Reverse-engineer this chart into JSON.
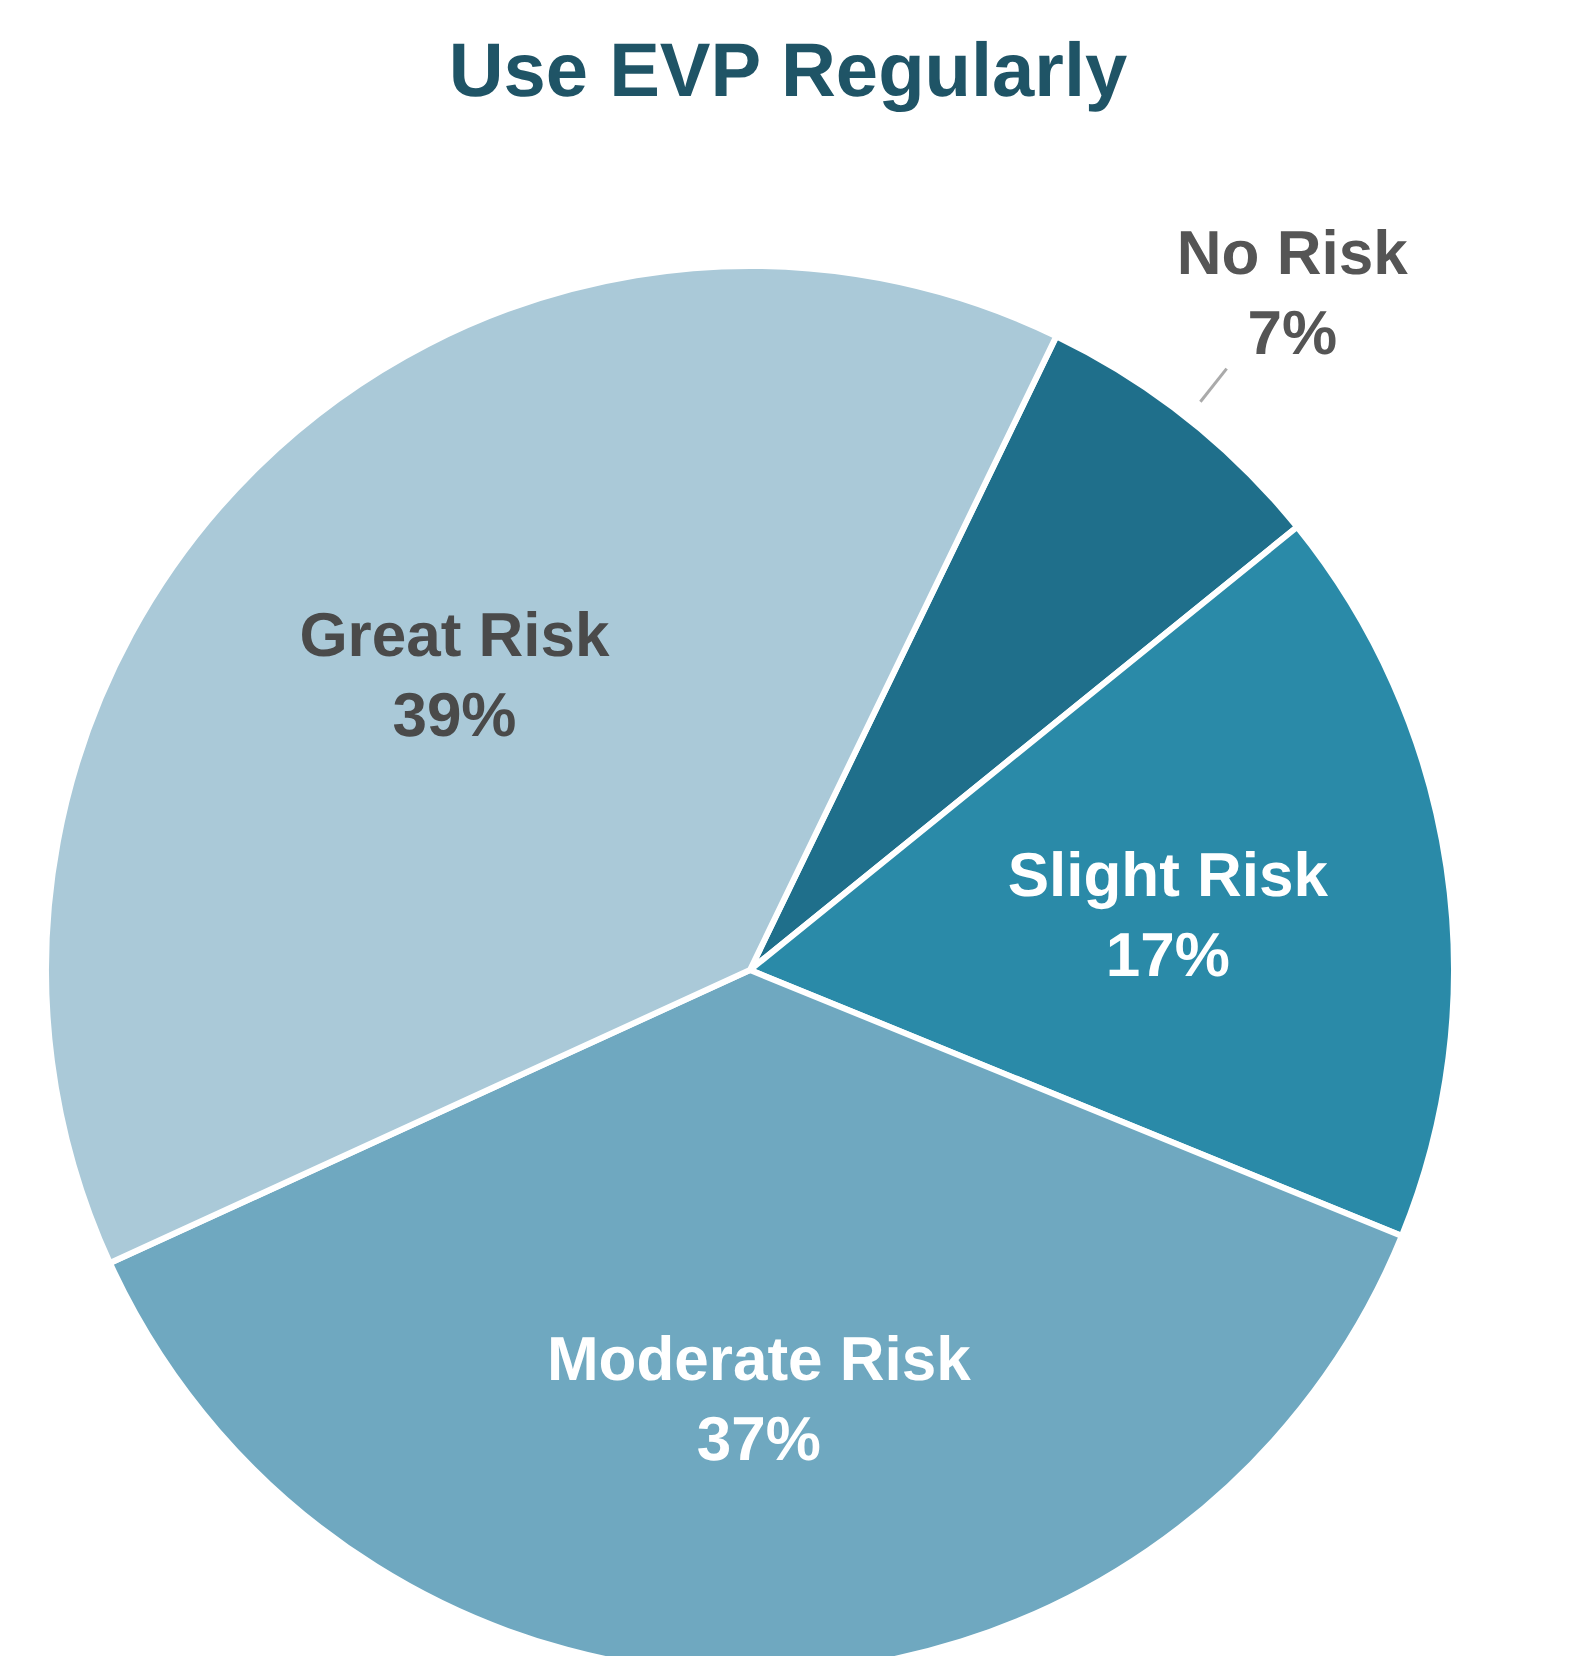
{
  "chart_data": {
    "type": "pie",
    "title": "Use EVP Regularly",
    "categories": [
      "No Risk",
      "Slight Risk",
      "Moderate Risk",
      "Great Risk"
    ],
    "values": [
      7,
      17,
      37,
      39
    ],
    "value_labels": [
      "7%",
      "17%",
      "37%",
      "39%"
    ],
    "colors": [
      "#1f6f8b",
      "#2a8aa8",
      "#6fa8c0",
      "#aac9d8"
    ],
    "legend": false
  }
}
